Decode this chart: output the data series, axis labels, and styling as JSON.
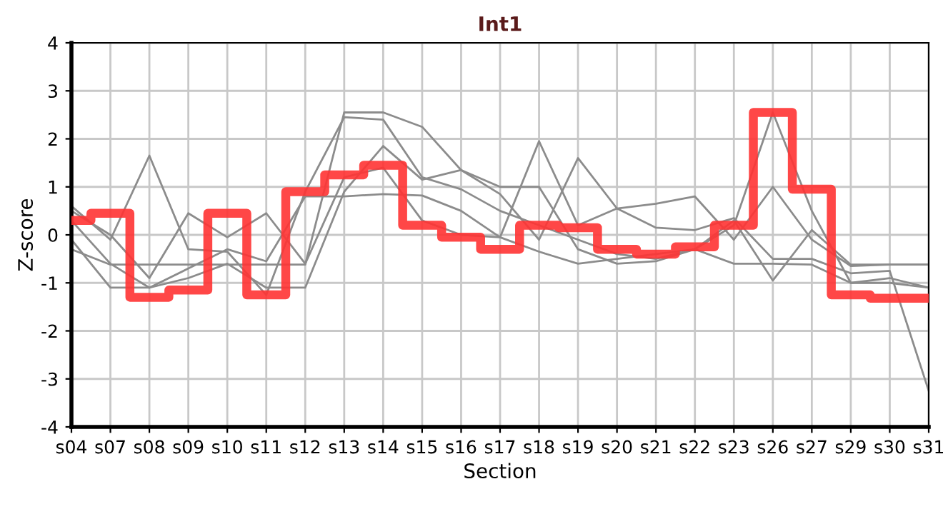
{
  "chart_data": {
    "type": "line",
    "title": "Int1",
    "xlabel": "Section",
    "ylabel": "Z-score",
    "categories": [
      "s04",
      "s07",
      "s08",
      "s09",
      "s10",
      "s11",
      "s12",
      "s13",
      "s14",
      "s15",
      "s16",
      "s17",
      "s18",
      "s19",
      "s20",
      "s21",
      "s22",
      "s23",
      "s26",
      "s27",
      "s29",
      "s30",
      "s31"
    ],
    "ylim": [
      -4,
      4
    ],
    "yticks": [
      -4,
      -3,
      -2,
      -1,
      0,
      1,
      2,
      3,
      4
    ],
    "grid": true,
    "series": [
      {
        "color": "#8c8c8c",
        "values": [
          0.6,
          -0.1,
          1.65,
          -0.3,
          -0.35,
          -1.25,
          0.9,
          2.45,
          2.4,
          1.2,
          0.95,
          0.5,
          0.2,
          -0.1,
          -0.4,
          -0.5,
          -0.3,
          0.2,
          2.55,
          0.5,
          -1.0,
          -0.9,
          -1.1
        ]
      },
      {
        "color": "#8c8c8c",
        "values": [
          -0.3,
          -0.62,
          -0.62,
          -0.62,
          -0.62,
          -0.62,
          -0.62,
          2.55,
          2.55,
          2.25,
          1.35,
          1.0,
          1.0,
          -0.3,
          -0.6,
          -0.55,
          -0.3,
          0.3,
          -0.95,
          0.1,
          -0.62,
          -0.62,
          -0.62
        ]
      },
      {
        "color": "#8c8c8c",
        "values": [
          0.3,
          -0.6,
          -1.1,
          -0.7,
          -0.3,
          -0.55,
          0.8,
          0.8,
          0.85,
          0.82,
          0.5,
          -0.05,
          1.95,
          0.2,
          0.55,
          0.65,
          0.8,
          -0.1,
          1.0,
          -0.1,
          -0.65,
          -0.62,
          -0.62
        ]
      },
      {
        "color": "#8c8c8c",
        "values": [
          -0.1,
          -1.1,
          -1.1,
          -0.9,
          -0.6,
          -1.1,
          -1.1,
          0.9,
          1.85,
          1.15,
          1.35,
          0.85,
          -0.1,
          1.6,
          0.55,
          0.15,
          0.1,
          0.35,
          -0.5,
          -0.5,
          -0.8,
          -0.75,
          -3.25
        ]
      },
      {
        "color": "#8c8c8c",
        "values": [
          0.5,
          0.0,
          -0.9,
          0.45,
          -0.05,
          0.45,
          -0.6,
          1.2,
          1.4,
          0.3,
          0.0,
          -0.05,
          -0.35,
          -0.6,
          -0.5,
          -0.4,
          -0.3,
          -0.6,
          -0.6,
          -0.62,
          -1.0,
          -1.0,
          -1.1
        ]
      },
      {
        "type": "step",
        "color": "#ff3333",
        "values": [
          0.3,
          0.45,
          -1.3,
          -1.15,
          0.45,
          -1.25,
          0.9,
          1.25,
          1.45,
          0.2,
          -0.05,
          -0.3,
          0.2,
          0.15,
          -0.3,
          -0.4,
          -0.25,
          0.2,
          2.55,
          0.95,
          -1.25,
          -1.32,
          -1.32
        ]
      }
    ]
  }
}
